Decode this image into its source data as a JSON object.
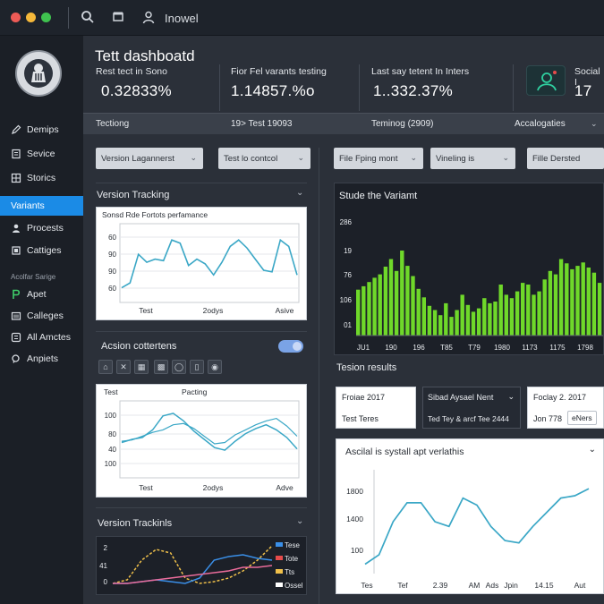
{
  "titlebar": {
    "title": "Inowel",
    "traffic": [
      "#ee5b56",
      "#f5b83a",
      "#3fc24f"
    ]
  },
  "sidebar": {
    "items": [
      {
        "label": "Demips",
        "icon": "pencil-icon"
      },
      {
        "label": "Sevice",
        "icon": "document-icon"
      },
      {
        "label": "Storics",
        "icon": "grid-icon"
      },
      {
        "label": "Variants",
        "icon": "none",
        "active": true
      },
      {
        "label": "Procests",
        "icon": "user-icon"
      },
      {
        "label": "Cattiges",
        "icon": "box-icon"
      }
    ],
    "sub_label": "Acolfar Sarige",
    "items2": [
      {
        "label": "Apet",
        "icon": "p-icon"
      },
      {
        "label": "Calleges",
        "icon": "folder-icon"
      },
      {
        "label": "All Amctes",
        "icon": "list-icon"
      },
      {
        "label": "Anpiets",
        "icon": "search-icon"
      }
    ]
  },
  "header": {
    "title": "Tett dashboatd",
    "kpis": [
      {
        "label": "Rest tect in Sono",
        "value": "0.32833%"
      },
      {
        "label": "Fior Fel varants testing",
        "value": "1.14857.%o"
      },
      {
        "label": "Last say tetent In Inters",
        "value": "1..332.37%"
      },
      {
        "label": "Social I",
        "value": "17"
      }
    ],
    "strip": [
      "Tectiong",
      "19> Test 19093",
      "Teminog (2909)",
      "Accalogaties"
    ]
  },
  "filters": {
    "left": [
      "Version Lagannerst",
      "Test lo contcol"
    ],
    "right": [
      "File Fping mont",
      "Vineling is",
      "Fille Dersted"
    ]
  },
  "left": {
    "section1": "Version Tracking",
    "chart1": {
      "title": "Sonsd Rde Fortots perfamance",
      "yticks": [
        "60",
        "90",
        "90",
        "60"
      ],
      "xlabels": [
        "Test",
        "2odys",
        "Asive"
      ]
    },
    "section2": "Acsion cottertens",
    "chart2": {
      "title": "Test",
      "title2": "Pacting",
      "yticks": [
        "100",
        "80",
        "40",
        "100"
      ],
      "xlabels": [
        "Test",
        "2odys",
        "Adve"
      ]
    },
    "section3": "Version Trackinls",
    "chart3": {
      "yticks": [
        "2",
        "41",
        "0"
      ],
      "legend": [
        "Tese",
        "Tote",
        "Tts",
        "Ossel"
      ]
    }
  },
  "right": {
    "chart_title": "Stude the Variamt",
    "chart_yticks": [
      "286",
      "19",
      "76",
      "106",
      "01"
    ],
    "chart_xticks": [
      "JU1",
      "190",
      "196",
      "T85",
      "T79",
      "1980",
      "1173",
      "1175",
      "1798"
    ],
    "section": "Tesion results",
    "cards": [
      {
        "line1": "Froiae 2017",
        "line2": "Test Teres"
      },
      {
        "line1": "Sibad Aysael Nent",
        "line2": "Ted Tey & arcf Tee 2444"
      },
      {
        "line1": "Foclay 2. 2017",
        "line2": "Jon 778",
        "badge": "eNers"
      }
    ],
    "panel_title": "Ascilal is systall apt verlathis",
    "panel_yticks": [
      "1800",
      "1400",
      "100"
    ],
    "panel_xticks": [
      "Tes",
      "Tef",
      "2.39",
      "AM",
      "Ads",
      "Jpin",
      "14.15",
      "Aut"
    ]
  },
  "chart_data": [
    {
      "type": "line",
      "title": "Sonsd Rde Fortots perfamance",
      "series": [
        {
          "values": [
            62,
            65,
            83,
            78,
            80,
            79,
            92,
            90,
            76,
            80,
            77,
            70,
            78,
            88,
            92,
            87,
            80,
            73,
            72,
            92,
            88,
            70
          ]
        }
      ],
      "ylim": [
        55,
        100
      ],
      "x_labels": [
        "Test",
        "2odys",
        "Asive"
      ]
    },
    {
      "type": "line",
      "title": "Test",
      "series": [
        {
          "values": [
            50,
            55,
            58,
            70,
            92,
            96,
            84,
            68,
            55,
            42,
            38,
            52,
            64,
            72,
            78,
            70,
            58,
            40
          ]
        },
        {
          "values": [
            52,
            54,
            60,
            66,
            70,
            78,
            80,
            72,
            60,
            48,
            50,
            62,
            70,
            78,
            84,
            88,
            76,
            60
          ]
        }
      ],
      "ylim": [
        0,
        130
      ],
      "x_labels": [
        "Test",
        "2odys",
        "Adve"
      ]
    },
    {
      "type": "line",
      "series": [
        {
          "name": "Tese",
          "values": [
            0.1,
            0.3,
            1.4,
            2.0,
            1.8,
            0.4,
            0.1,
            0.2,
            0.4,
            0.8,
            1.4,
            2.2
          ]
        },
        {
          "name": "Tote",
          "values": [
            0.1,
            0.1,
            0.2,
            0.3,
            0.2,
            0.1,
            0.4,
            1.4,
            1.6,
            1.7,
            1.5,
            1.4
          ]
        },
        {
          "name": "Tts",
          "values": [
            0.1,
            0.1,
            0.2,
            0.3,
            0.4,
            0.5,
            0.6,
            0.7,
            0.8,
            1.0,
            1.0,
            1.1
          ]
        }
      ]
    },
    {
      "type": "bar",
      "title": "Stude the Variamt",
      "values": [
        54,
        58,
        63,
        68,
        72,
        81,
        90,
        76,
        100,
        82,
        70,
        55,
        45,
        35,
        30,
        24,
        38,
        22,
        30,
        48,
        36,
        28,
        32,
        44,
        38,
        40,
        60,
        48,
        44,
        52,
        62,
        60,
        48,
        52,
        66,
        76,
        72,
        90,
        85,
        78,
        82,
        86,
        80,
        74,
        62
      ],
      "ylim": [
        0,
        260
      ]
    },
    {
      "type": "line",
      "title": "Ascilal is systall apt verlathis",
      "series": [
        {
          "values": [
            200,
            400,
            1100,
            1500,
            1500,
            1100,
            1000,
            1600,
            1450,
            1000,
            700,
            650,
            1000,
            1300,
            1600,
            1650,
            1800
          ]
        }
      ],
      "ylim": [
        0,
        2000
      ],
      "x_labels": [
        "Tes",
        "Tef",
        "2.39",
        "AM",
        "Ads",
        "Jpin",
        "14.15",
        "Aut"
      ]
    }
  ]
}
